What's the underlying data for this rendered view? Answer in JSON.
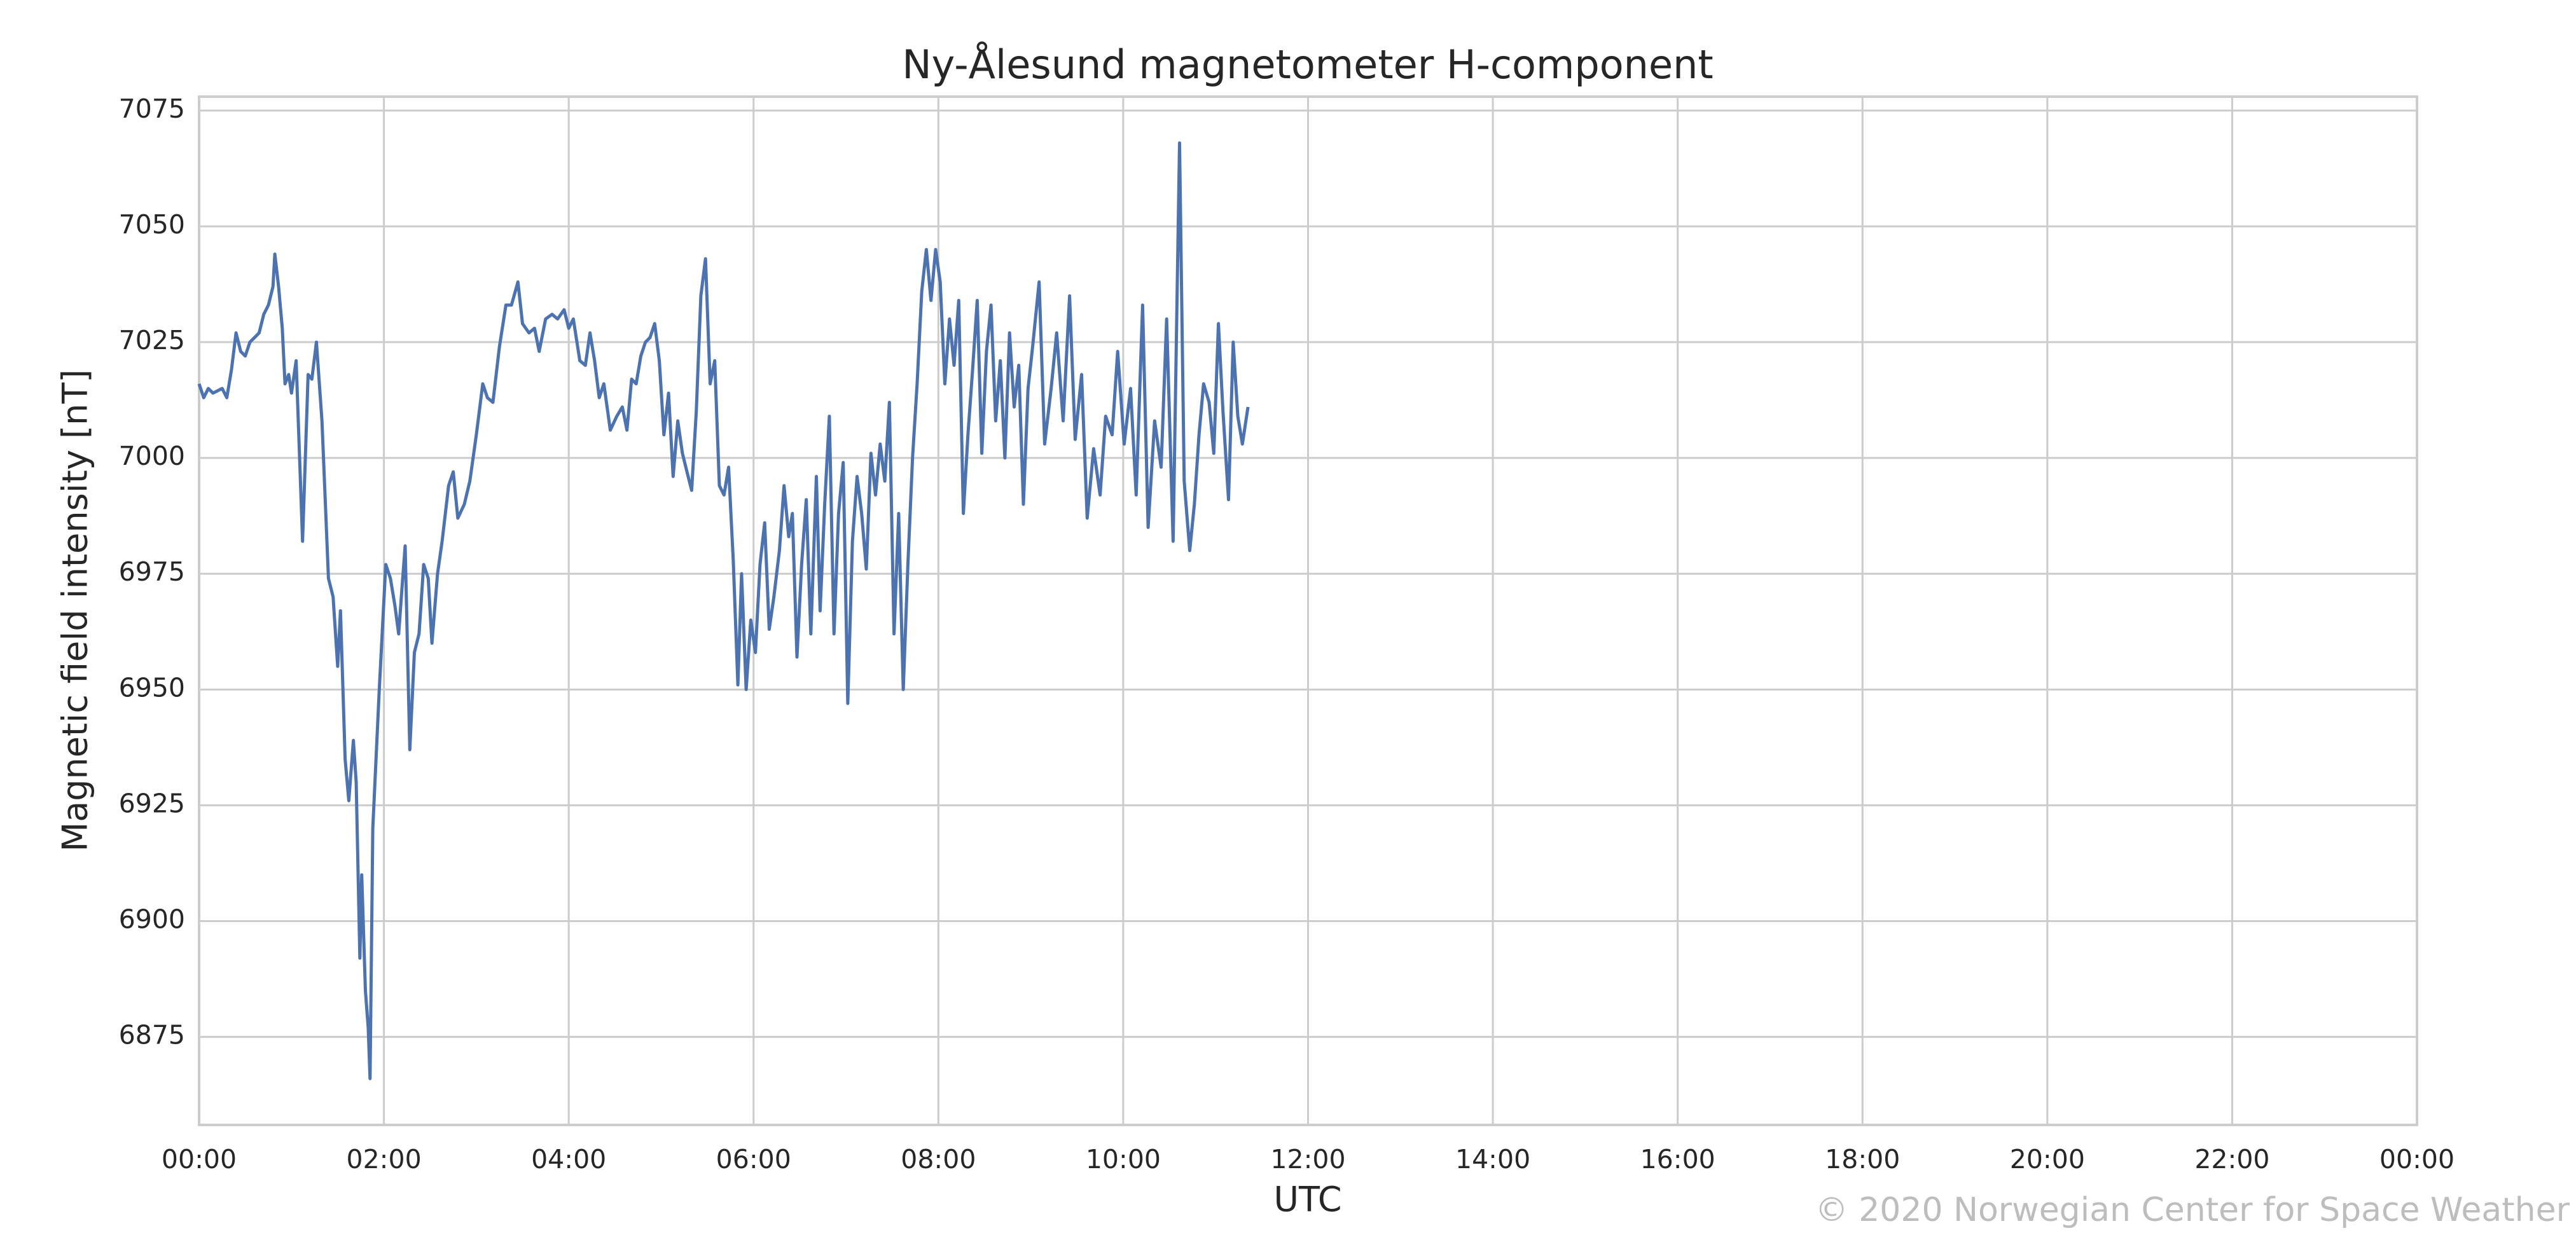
{
  "chart_data": {
    "type": "line",
    "title": "Ny-Ålesund magnetometer H-component",
    "xlabel": "UTC",
    "ylabel": "Magnetic field intensity [nT]",
    "annotation": "© 2020 Norwegian Center for Space Weather",
    "grid": true,
    "xlim": [
      0,
      24
    ],
    "ylim": [
      6856,
      7078
    ],
    "xticks": [
      {
        "value": 0,
        "label": "00:00"
      },
      {
        "value": 2,
        "label": "02:00"
      },
      {
        "value": 4,
        "label": "04:00"
      },
      {
        "value": 6,
        "label": "06:00"
      },
      {
        "value": 8,
        "label": "08:00"
      },
      {
        "value": 10,
        "label": "10:00"
      },
      {
        "value": 12,
        "label": "12:00"
      },
      {
        "value": 14,
        "label": "14:00"
      },
      {
        "value": 16,
        "label": "16:00"
      },
      {
        "value": 18,
        "label": "18:00"
      },
      {
        "value": 20,
        "label": "20:00"
      },
      {
        "value": 22,
        "label": "22:00"
      },
      {
        "value": 24,
        "label": "00:00"
      }
    ],
    "yticks": [
      6875,
      6900,
      6925,
      6950,
      6975,
      7000,
      7025,
      7050,
      7075
    ],
    "x": [
      0.0,
      0.05,
      0.1,
      0.15,
      0.25,
      0.3,
      0.35,
      0.4,
      0.45,
      0.5,
      0.55,
      0.6,
      0.65,
      0.7,
      0.75,
      0.8,
      0.82,
      0.86,
      0.9,
      0.93,
      0.97,
      1.0,
      1.05,
      1.12,
      1.18,
      1.22,
      1.27,
      1.33,
      1.4,
      1.45,
      1.5,
      1.53,
      1.58,
      1.62,
      1.67,
      1.7,
      1.74,
      1.76,
      1.8,
      1.83,
      1.85,
      1.88,
      1.95,
      2.02,
      2.07,
      2.12,
      2.16,
      2.2,
      2.23,
      2.28,
      2.33,
      2.38,
      2.43,
      2.48,
      2.52,
      2.58,
      2.63,
      2.7,
      2.75,
      2.8,
      2.87,
      2.93,
      3.0,
      3.07,
      3.12,
      3.18,
      3.25,
      3.32,
      3.38,
      3.45,
      3.5,
      3.57,
      3.63,
      3.68,
      3.75,
      3.82,
      3.88,
      3.95,
      4.0,
      4.05,
      4.12,
      4.18,
      4.23,
      4.28,
      4.33,
      4.38,
      4.45,
      4.52,
      4.58,
      4.63,
      4.68,
      4.73,
      4.78,
      4.83,
      4.88,
      4.93,
      4.98,
      5.03,
      5.08,
      5.13,
      5.18,
      5.23,
      5.28,
      5.33,
      5.38,
      5.43,
      5.48,
      5.53,
      5.58,
      5.63,
      5.68,
      5.73,
      5.78,
      5.83,
      5.87,
      5.92,
      5.97,
      6.02,
      6.07,
      6.12,
      6.17,
      6.22,
      6.28,
      6.33,
      6.38,
      6.42,
      6.47,
      6.52,
      6.57,
      6.62,
      6.68,
      6.72,
      6.77,
      6.82,
      6.87,
      6.92,
      6.97,
      7.02,
      7.07,
      7.12,
      7.17,
      7.22,
      7.27,
      7.32,
      7.37,
      7.42,
      7.47,
      7.52,
      7.57,
      7.62,
      7.67,
      7.72,
      7.77,
      7.82,
      7.87,
      7.92,
      7.97,
      8.02,
      8.07,
      8.12,
      8.17,
      8.22,
      8.27,
      8.32,
      8.37,
      8.42,
      8.47,
      8.52,
      8.57,
      8.62,
      8.67,
      8.72,
      8.77,
      8.82,
      8.87,
      8.92,
      8.97,
      9.02,
      9.09,
      9.15,
      9.22,
      9.28,
      9.35,
      9.42,
      9.48,
      9.55,
      9.61,
      9.68,
      9.75,
      9.81,
      9.88,
      9.94,
      10.01,
      10.08,
      10.14,
      10.21,
      10.27,
      10.34,
      10.41,
      10.47,
      10.54,
      10.61,
      10.66,
      10.72,
      10.77,
      10.82,
      10.87,
      10.93,
      10.98,
      11.03,
      11.08,
      11.14,
      11.19,
      11.24,
      11.29,
      11.35
    ],
    "series": [
      {
        "color": "#4c72b0",
        "values": [
          7016,
          7013,
          7015,
          7014,
          7015,
          7013,
          7019,
          7027,
          7023,
          7022,
          7025,
          7026,
          7027,
          7031,
          7033,
          7037,
          7044,
          7037,
          7028,
          7016,
          7018,
          7014,
          7021,
          6982,
          7018,
          7017,
          7025,
          7008,
          6974,
          6970,
          6955,
          6967,
          6935,
          6926,
          6939,
          6930,
          6892,
          6910,
          6885,
          6877,
          6866,
          6920,
          6950,
          6977,
          6974,
          6968,
          6962,
          6973,
          6981,
          6937,
          6958,
          6962,
          6977,
          6974,
          6960,
          6975,
          6982,
          6994,
          6997,
          6987,
          6990,
          6995,
          7005,
          7016,
          7013,
          7012,
          7024,
          7033,
          7033,
          7038,
          7029,
          7027,
          7028,
          7023,
          7030,
          7031,
          7030,
          7032,
          7028,
          7030,
          7021,
          7020,
          7027,
          7021,
          7013,
          7016,
          7006,
          7009,
          7011,
          7006,
          7017,
          7016,
          7022,
          7025,
          7026,
          7029,
          7021,
          7005,
          7014,
          6996,
          7008,
          7001,
          6997,
          6993,
          7010,
          7035,
          7043,
          7016,
          7021,
          6994,
          6992,
          6998,
          6978,
          6951,
          6975,
          6950,
          6965,
          6958,
          6977,
          6986,
          6963,
          6970,
          6980,
          6994,
          6983,
          6988,
          6957,
          6977,
          6991,
          6962,
          6996,
          6967,
          6990,
          7009,
          6962,
          6988,
          6999,
          6947,
          6982,
          6996,
          6988,
          6976,
          7001,
          6992,
          7003,
          6995,
          7012,
          6962,
          6988,
          6950,
          6977,
          7000,
          7016,
          7036,
          7045,
          7034,
          7045,
          7038,
          7016,
          7030,
          7020,
          7034,
          6988,
          7005,
          7019,
          7034,
          7001,
          7023,
          7033,
          7008,
          7021,
          7000,
          7027,
          7011,
          7020,
          6990,
          7015,
          7024,
          7038,
          7003,
          7015,
          7027,
          7008,
          7035,
          7004,
          7018,
          6987,
          7002,
          6992,
          7009,
          7005,
          7023,
          7003,
          7015,
          6992,
          7033,
          6985,
          7008,
          6998,
          7030,
          6982,
          7068,
          6995,
          6980,
          6990,
          7005,
          7016,
          7012,
          7001,
          7029,
          7010,
          6991,
          7025,
          7009,
          7003,
          7011
        ]
      }
    ]
  }
}
